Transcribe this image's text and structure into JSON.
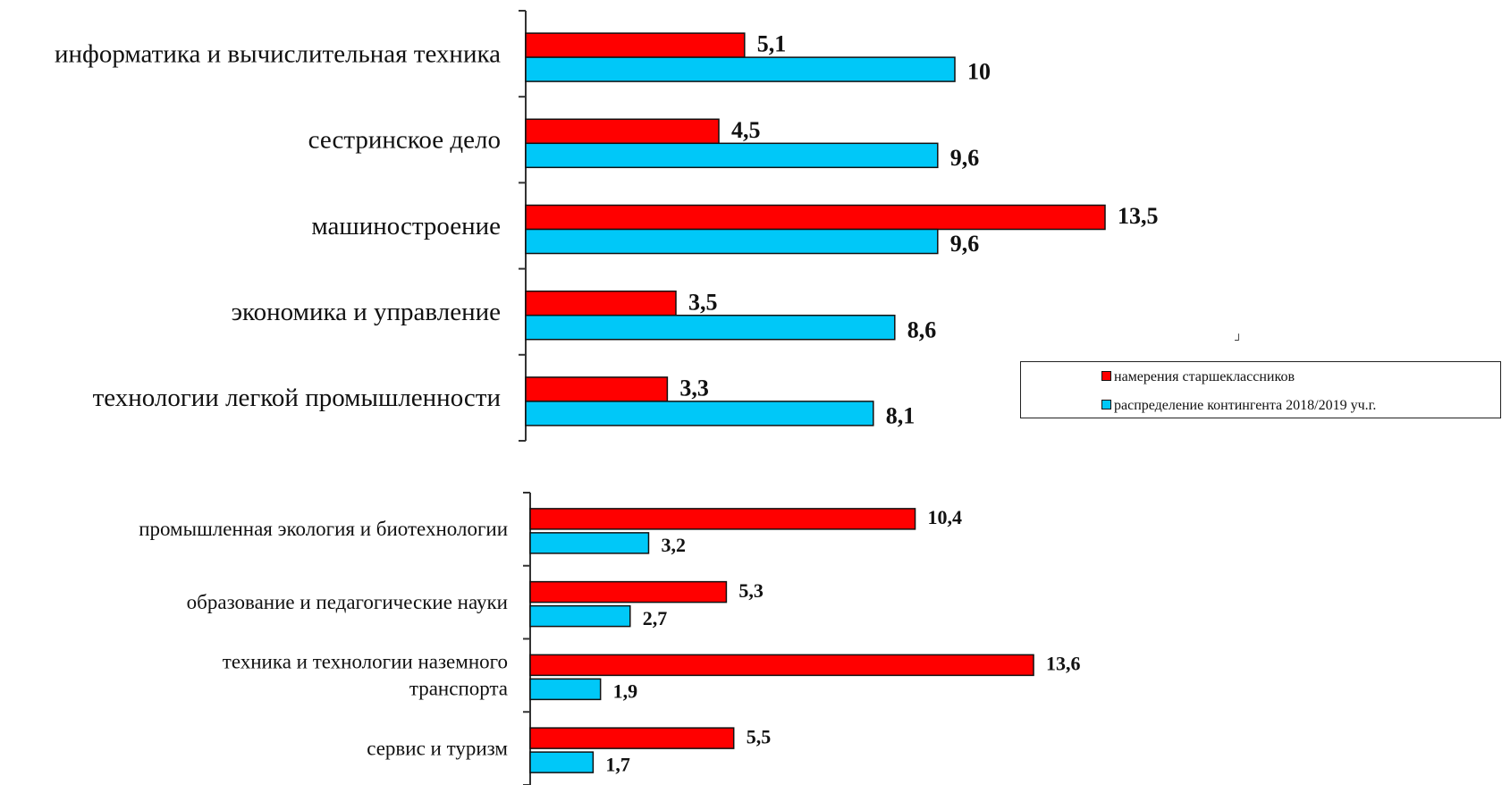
{
  "colors": {
    "intentions": "#ff0000",
    "distribution": "#00c8f8",
    "axis": "#333333",
    "bar_border": "#111111"
  },
  "legend": {
    "intentions_label": "намерения старшеклассников",
    "distribution_label": "распределение контингента 2018/2019 уч.г."
  },
  "corner_mark": "┘",
  "chart_data": [
    {
      "type": "bar",
      "orientation": "horizontal",
      "title": "",
      "categories": [
        "информатика и вычислительная техника",
        "сестринское дело",
        "машиностроение",
        "экономика и управление",
        "технологии легкой промышленности"
      ],
      "series": [
        {
          "name": "намерения старшеклассников",
          "color": "#ff0000",
          "values": [
            5.1,
            4.5,
            13.5,
            3.5,
            3.3
          ],
          "labels": [
            "5,1",
            "4,5",
            "13,5",
            "3,5",
            "3,3"
          ]
        },
        {
          "name": "распределение контингента 2018/2019 уч.г.",
          "color": "#00c8f8",
          "values": [
            10,
            9.6,
            9.6,
            8.6,
            8.1
          ],
          "labels": [
            "10",
            "9,6",
            "9,6",
            "8,6",
            "8,1"
          ]
        }
      ],
      "legend": "right"
    },
    {
      "type": "bar",
      "orientation": "horizontal",
      "title": "",
      "categories": [
        "промышленная экология и биотехнологии",
        "образование и педагогические науки",
        "техника и технологии наземного транспорта",
        "сервис и туризм"
      ],
      "category_lines": [
        [
          "промышленная экология и биотехнологии"
        ],
        [
          "образование и педагогические науки"
        ],
        [
          "техника и технологии наземного",
          "транспорта"
        ],
        [
          "сервис и туризм"
        ]
      ],
      "series": [
        {
          "name": "намерения старшеклассников",
          "color": "#ff0000",
          "values": [
            10.4,
            5.3,
            13.6,
            5.5
          ],
          "labels": [
            "10,4",
            "5,3",
            "13,6",
            "5,5"
          ]
        },
        {
          "name": "распределение контингента 2018/2019 уч.г.",
          "color": "#00c8f8",
          "values": [
            3.2,
            2.7,
            1.9,
            1.7
          ],
          "labels": [
            "3,2",
            "2,7",
            "1,9",
            "1,7"
          ]
        }
      ]
    }
  ]
}
